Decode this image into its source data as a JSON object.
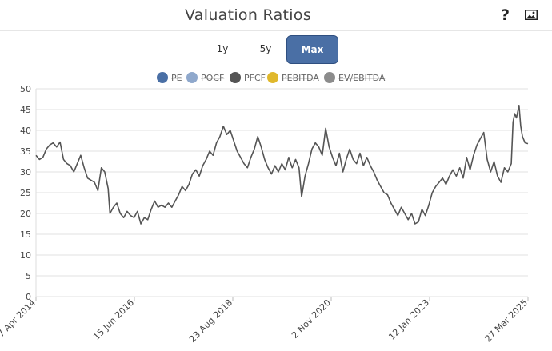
{
  "header": {
    "title": "Valuation Ratios",
    "help_icon": "question-mark",
    "image_icon": "image-icon"
  },
  "range_buttons": [
    {
      "label": "1y",
      "active": false
    },
    {
      "label": "5y",
      "active": false
    },
    {
      "label": "Max",
      "active": true
    }
  ],
  "colors": {
    "accent": "#4a6fa5",
    "PE": "#4a6fa5",
    "POCF": "#8fa8cc",
    "PFCF": "#444444",
    "PEBITDA": "#e0b82c",
    "EVEBITDA": "#8c8c8c"
  },
  "chart_data": {
    "type": "line",
    "title": "Valuation Ratios",
    "legend": [
      {
        "name": "PE",
        "color": "#4a6fa5",
        "enabled": false
      },
      {
        "name": "POCF",
        "color": "#8fa8cc",
        "enabled": false
      },
      {
        "name": "PFCF",
        "color": "#555555",
        "enabled": true
      },
      {
        "name": "PEBITDA",
        "color": "#e0b82c",
        "enabled": false
      },
      {
        "name": "EV/EBITDA",
        "color": "#8c8c8c",
        "enabled": false
      }
    ],
    "legend_position": "top-center",
    "x_ticks": [
      "7 Apr 2014",
      "15 Jun 2016",
      "23 Aug 2018",
      "2 Nov 2020",
      "12 Jan 2023",
      "27 Mar 2025"
    ],
    "y_ticks": [
      0,
      5,
      10,
      15,
      20,
      25,
      30,
      35,
      40,
      45,
      50
    ],
    "ylim": [
      0,
      50
    ],
    "xlim": [
      "2014-04-07",
      "2025-03-27"
    ],
    "grid": true,
    "series": [
      {
        "name": "PFCF",
        "points": [
          [
            "2014-04-07",
            34.0
          ],
          [
            "2014-05-05",
            33.0
          ],
          [
            "2014-06-02",
            33.5
          ],
          [
            "2014-06-30",
            35.5
          ],
          [
            "2014-07-28",
            36.5
          ],
          [
            "2014-08-25",
            37.0
          ],
          [
            "2014-09-22",
            36.0
          ],
          [
            "2014-10-20",
            37.2
          ],
          [
            "2014-11-17",
            33.0
          ],
          [
            "2014-12-15",
            32.0
          ],
          [
            "2015-01-12",
            31.5
          ],
          [
            "2015-02-09",
            30.0
          ],
          [
            "2015-03-09",
            32.0
          ],
          [
            "2015-04-06",
            34.0
          ],
          [
            "2015-05-04",
            31.0
          ],
          [
            "2015-06-01",
            28.5
          ],
          [
            "2015-06-29",
            28.0
          ],
          [
            "2015-07-27",
            27.5
          ],
          [
            "2015-08-24",
            25.5
          ],
          [
            "2015-09-21",
            31.0
          ],
          [
            "2015-10-19",
            30.0
          ],
          [
            "2015-11-16",
            26.0
          ],
          [
            "2015-11-30",
            20.0
          ],
          [
            "2015-12-28",
            21.5
          ],
          [
            "2016-01-25",
            22.5
          ],
          [
            "2016-02-22",
            20.0
          ],
          [
            "2016-03-21",
            19.0
          ],
          [
            "2016-04-18",
            20.5
          ],
          [
            "2016-05-16",
            19.5
          ],
          [
            "2016-06-13",
            19.0
          ],
          [
            "2016-07-11",
            20.5
          ],
          [
            "2016-08-08",
            17.5
          ],
          [
            "2016-09-05",
            19.0
          ],
          [
            "2016-10-03",
            18.5
          ],
          [
            "2016-10-31",
            21.0
          ],
          [
            "2016-11-28",
            23.0
          ],
          [
            "2016-12-26",
            21.5
          ],
          [
            "2017-01-23",
            22.0
          ],
          [
            "2017-02-20",
            21.5
          ],
          [
            "2017-03-20",
            22.5
          ],
          [
            "2017-04-17",
            21.5
          ],
          [
            "2017-05-15",
            23.0
          ],
          [
            "2017-06-12",
            24.5
          ],
          [
            "2017-07-10",
            26.5
          ],
          [
            "2017-08-07",
            25.5
          ],
          [
            "2017-09-04",
            27.0
          ],
          [
            "2017-10-02",
            29.5
          ],
          [
            "2017-10-30",
            30.5
          ],
          [
            "2017-11-27",
            29.0
          ],
          [
            "2017-12-25",
            31.5
          ],
          [
            "2018-01-22",
            33.0
          ],
          [
            "2018-02-19",
            35.0
          ],
          [
            "2018-03-19",
            34.0
          ],
          [
            "2018-04-16",
            37.0
          ],
          [
            "2018-05-14",
            38.5
          ],
          [
            "2018-06-11",
            41.0
          ],
          [
            "2018-07-09",
            39.0
          ],
          [
            "2018-08-06",
            40.0
          ],
          [
            "2018-09-03",
            37.5
          ],
          [
            "2018-10-01",
            35.0
          ],
          [
            "2018-10-29",
            33.5
          ],
          [
            "2018-11-26",
            32.0
          ],
          [
            "2018-12-24",
            31.0
          ],
          [
            "2019-01-21",
            33.5
          ],
          [
            "2019-02-18",
            35.5
          ],
          [
            "2019-03-18",
            38.5
          ],
          [
            "2019-04-15",
            36.0
          ],
          [
            "2019-05-13",
            33.0
          ],
          [
            "2019-06-10",
            31.0
          ],
          [
            "2019-07-08",
            29.5
          ],
          [
            "2019-08-05",
            31.5
          ],
          [
            "2019-09-02",
            30.0
          ],
          [
            "2019-09-30",
            32.0
          ],
          [
            "2019-10-28",
            30.5
          ],
          [
            "2019-11-25",
            33.5
          ],
          [
            "2019-12-23",
            31.0
          ],
          [
            "2020-01-20",
            33.0
          ],
          [
            "2020-02-17",
            31.0
          ],
          [
            "2020-03-09",
            24.0
          ],
          [
            "2020-04-06",
            29.0
          ],
          [
            "2020-05-04",
            32.0
          ],
          [
            "2020-06-01",
            35.5
          ],
          [
            "2020-06-29",
            37.0
          ],
          [
            "2020-07-27",
            36.0
          ],
          [
            "2020-08-24",
            34.0
          ],
          [
            "2020-09-21",
            40.5
          ],
          [
            "2020-10-19",
            36.0
          ],
          [
            "2020-11-16",
            33.5
          ],
          [
            "2020-12-14",
            31.5
          ],
          [
            "2021-01-11",
            34.5
          ],
          [
            "2021-02-08",
            30.0
          ],
          [
            "2021-03-08",
            33.0
          ],
          [
            "2021-04-05",
            35.5
          ],
          [
            "2021-05-03",
            33.0
          ],
          [
            "2021-05-31",
            32.0
          ],
          [
            "2021-06-28",
            34.5
          ],
          [
            "2021-07-26",
            31.5
          ],
          [
            "2021-08-23",
            33.5
          ],
          [
            "2021-09-20",
            31.5
          ],
          [
            "2021-10-18",
            30.0
          ],
          [
            "2021-11-15",
            28.0
          ],
          [
            "2021-12-13",
            26.5
          ],
          [
            "2022-01-10",
            25.0
          ],
          [
            "2022-02-07",
            24.5
          ],
          [
            "2022-03-07",
            22.5
          ],
          [
            "2022-04-04",
            21.0
          ],
          [
            "2022-05-02",
            19.5
          ],
          [
            "2022-05-30",
            21.5
          ],
          [
            "2022-06-27",
            20.0
          ],
          [
            "2022-07-25",
            18.5
          ],
          [
            "2022-08-22",
            20.0
          ],
          [
            "2022-09-19",
            17.5
          ],
          [
            "2022-10-17",
            18.0
          ],
          [
            "2022-11-14",
            21.0
          ],
          [
            "2022-12-12",
            19.5
          ],
          [
            "2023-01-09",
            22.0
          ],
          [
            "2023-02-06",
            25.0
          ],
          [
            "2023-03-06",
            26.5
          ],
          [
            "2023-04-03",
            27.5
          ],
          [
            "2023-05-01",
            28.5
          ],
          [
            "2023-05-29",
            27.0
          ],
          [
            "2023-06-26",
            29.0
          ],
          [
            "2023-07-24",
            30.5
          ],
          [
            "2023-08-21",
            29.0
          ],
          [
            "2023-09-18",
            31.0
          ],
          [
            "2023-10-16",
            28.5
          ],
          [
            "2023-11-13",
            33.5
          ],
          [
            "2023-12-11",
            30.5
          ],
          [
            "2024-01-08",
            34.0
          ],
          [
            "2024-02-05",
            36.5
          ],
          [
            "2024-03-04",
            38.0
          ],
          [
            "2024-04-01",
            39.5
          ],
          [
            "2024-04-29",
            33.0
          ],
          [
            "2024-05-27",
            30.0
          ],
          [
            "2024-06-24",
            32.5
          ],
          [
            "2024-07-22",
            29.0
          ],
          [
            "2024-08-19",
            27.5
          ],
          [
            "2024-09-16",
            31.0
          ],
          [
            "2024-10-14",
            30.0
          ],
          [
            "2024-11-11",
            32.0
          ],
          [
            "2024-11-25",
            42.0
          ],
          [
            "2024-12-09",
            44.0
          ],
          [
            "2024-12-23",
            43.0
          ],
          [
            "2025-01-13",
            46.0
          ],
          [
            "2025-01-27",
            41.0
          ],
          [
            "2025-02-10",
            38.5
          ],
          [
            "2025-03-03",
            37.0
          ],
          [
            "2025-03-27",
            36.8
          ]
        ]
      }
    ]
  }
}
